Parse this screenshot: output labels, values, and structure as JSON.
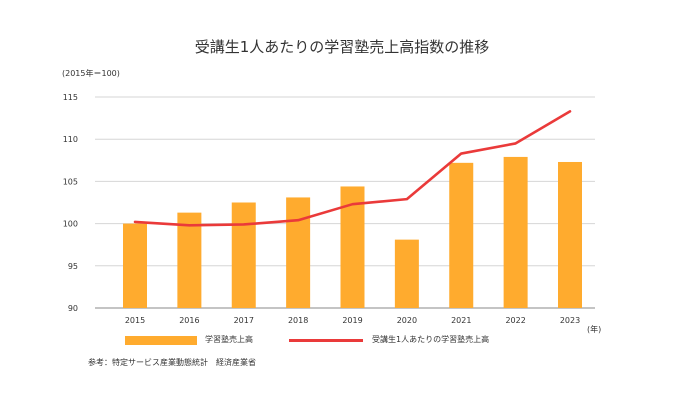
{
  "chart_data": {
    "type": "bar",
    "title": "受講生1人あたりの学習塾売上高指数の推移",
    "y_unit_note": "(2015年＝100)",
    "x_unit_note": "(年)",
    "categories": [
      "2015",
      "2016",
      "2017",
      "2018",
      "2019",
      "2020",
      "2021",
      "2022",
      "2023"
    ],
    "series": [
      {
        "name": "学習塾売上高",
        "kind": "bar",
        "color": "#FFAB2E",
        "values": [
          100.0,
          101.3,
          102.5,
          103.1,
          104.4,
          98.1,
          107.2,
          107.9,
          107.3
        ]
      },
      {
        "name": "受講生1人あたりの学習塾売上高",
        "kind": "line",
        "color": "#EA3A3A",
        "values": [
          100.2,
          99.8,
          99.9,
          100.4,
          102.3,
          102.9,
          108.3,
          109.5,
          113.3
        ]
      }
    ],
    "ylim": [
      90,
      115
    ],
    "yticks": [
      90,
      95,
      100,
      105,
      110,
      115
    ],
    "grid": true,
    "legend_position": "bottom"
  },
  "source_note": "参考：特定サービス産業動態統計　経済産業省"
}
